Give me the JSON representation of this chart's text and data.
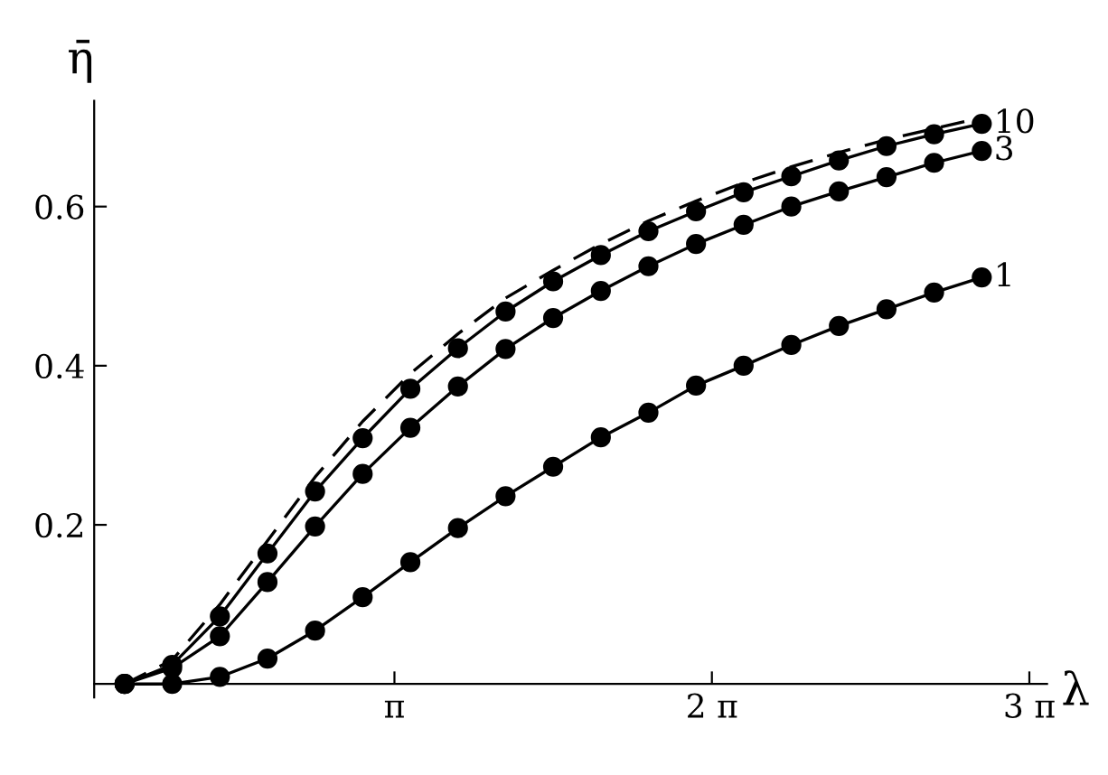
{
  "chart_data": {
    "type": "line",
    "xlabel": "λ",
    "ylabel": "η̄",
    "x": [
      0.471,
      0.942,
      1.414,
      1.885,
      2.356,
      2.827,
      3.299,
      3.77,
      4.241,
      4.712,
      5.184,
      5.655,
      6.126,
      6.597,
      7.069,
      7.54,
      8.011,
      8.482,
      8.954
    ],
    "series": [
      {
        "name": "1",
        "color": "#000000",
        "marker": "circle",
        "line_style": "solid",
        "values": [
          0,
          0,
          0.009,
          0.032,
          0.067,
          0.109,
          0.153,
          0.196,
          0.236,
          0.273,
          0.31,
          0.341,
          0.375,
          0.4,
          0.426,
          0.45,
          0.471,
          0.492,
          0.511
        ]
      },
      {
        "name": "3",
        "color": "#000000",
        "marker": "circle",
        "line_style": "solid",
        "values": [
          0,
          0.02,
          0.06,
          0.128,
          0.198,
          0.264,
          0.322,
          0.374,
          0.421,
          0.46,
          0.494,
          0.525,
          0.553,
          0.577,
          0.6,
          0.619,
          0.637,
          0.655,
          0.67
        ]
      },
      {
        "name": "10",
        "color": "#000000",
        "marker": "circle",
        "line_style": "solid",
        "values": [
          0,
          0.024,
          0.085,
          0.164,
          0.242,
          0.309,
          0.371,
          0.422,
          0.468,
          0.506,
          0.539,
          0.569,
          0.594,
          0.618,
          0.638,
          0.658,
          0.676,
          0.691,
          0.704
        ]
      },
      {
        "color": "#000000",
        "marker": "none",
        "line_style": "dashed",
        "values": [
          0,
          0.03,
          0.1,
          0.18,
          0.26,
          0.33,
          0.39,
          0.44,
          0.485,
          0.52,
          0.553,
          0.582,
          0.607,
          0.63,
          0.65,
          0.668,
          0.684,
          0.698,
          0.712
        ]
      }
    ],
    "xlim": [
      0.17,
      9.6
    ],
    "ylim": [
      -0.017,
      0.733
    ],
    "xticks": [
      {
        "value": 3.14159,
        "label": "π"
      },
      {
        "value": 6.28319,
        "label": "2 π"
      },
      {
        "value": 9.42478,
        "label": "3 π"
      }
    ],
    "yticks": [
      0.2,
      0.4,
      0.6
    ],
    "grid": false,
    "legend": false
  }
}
